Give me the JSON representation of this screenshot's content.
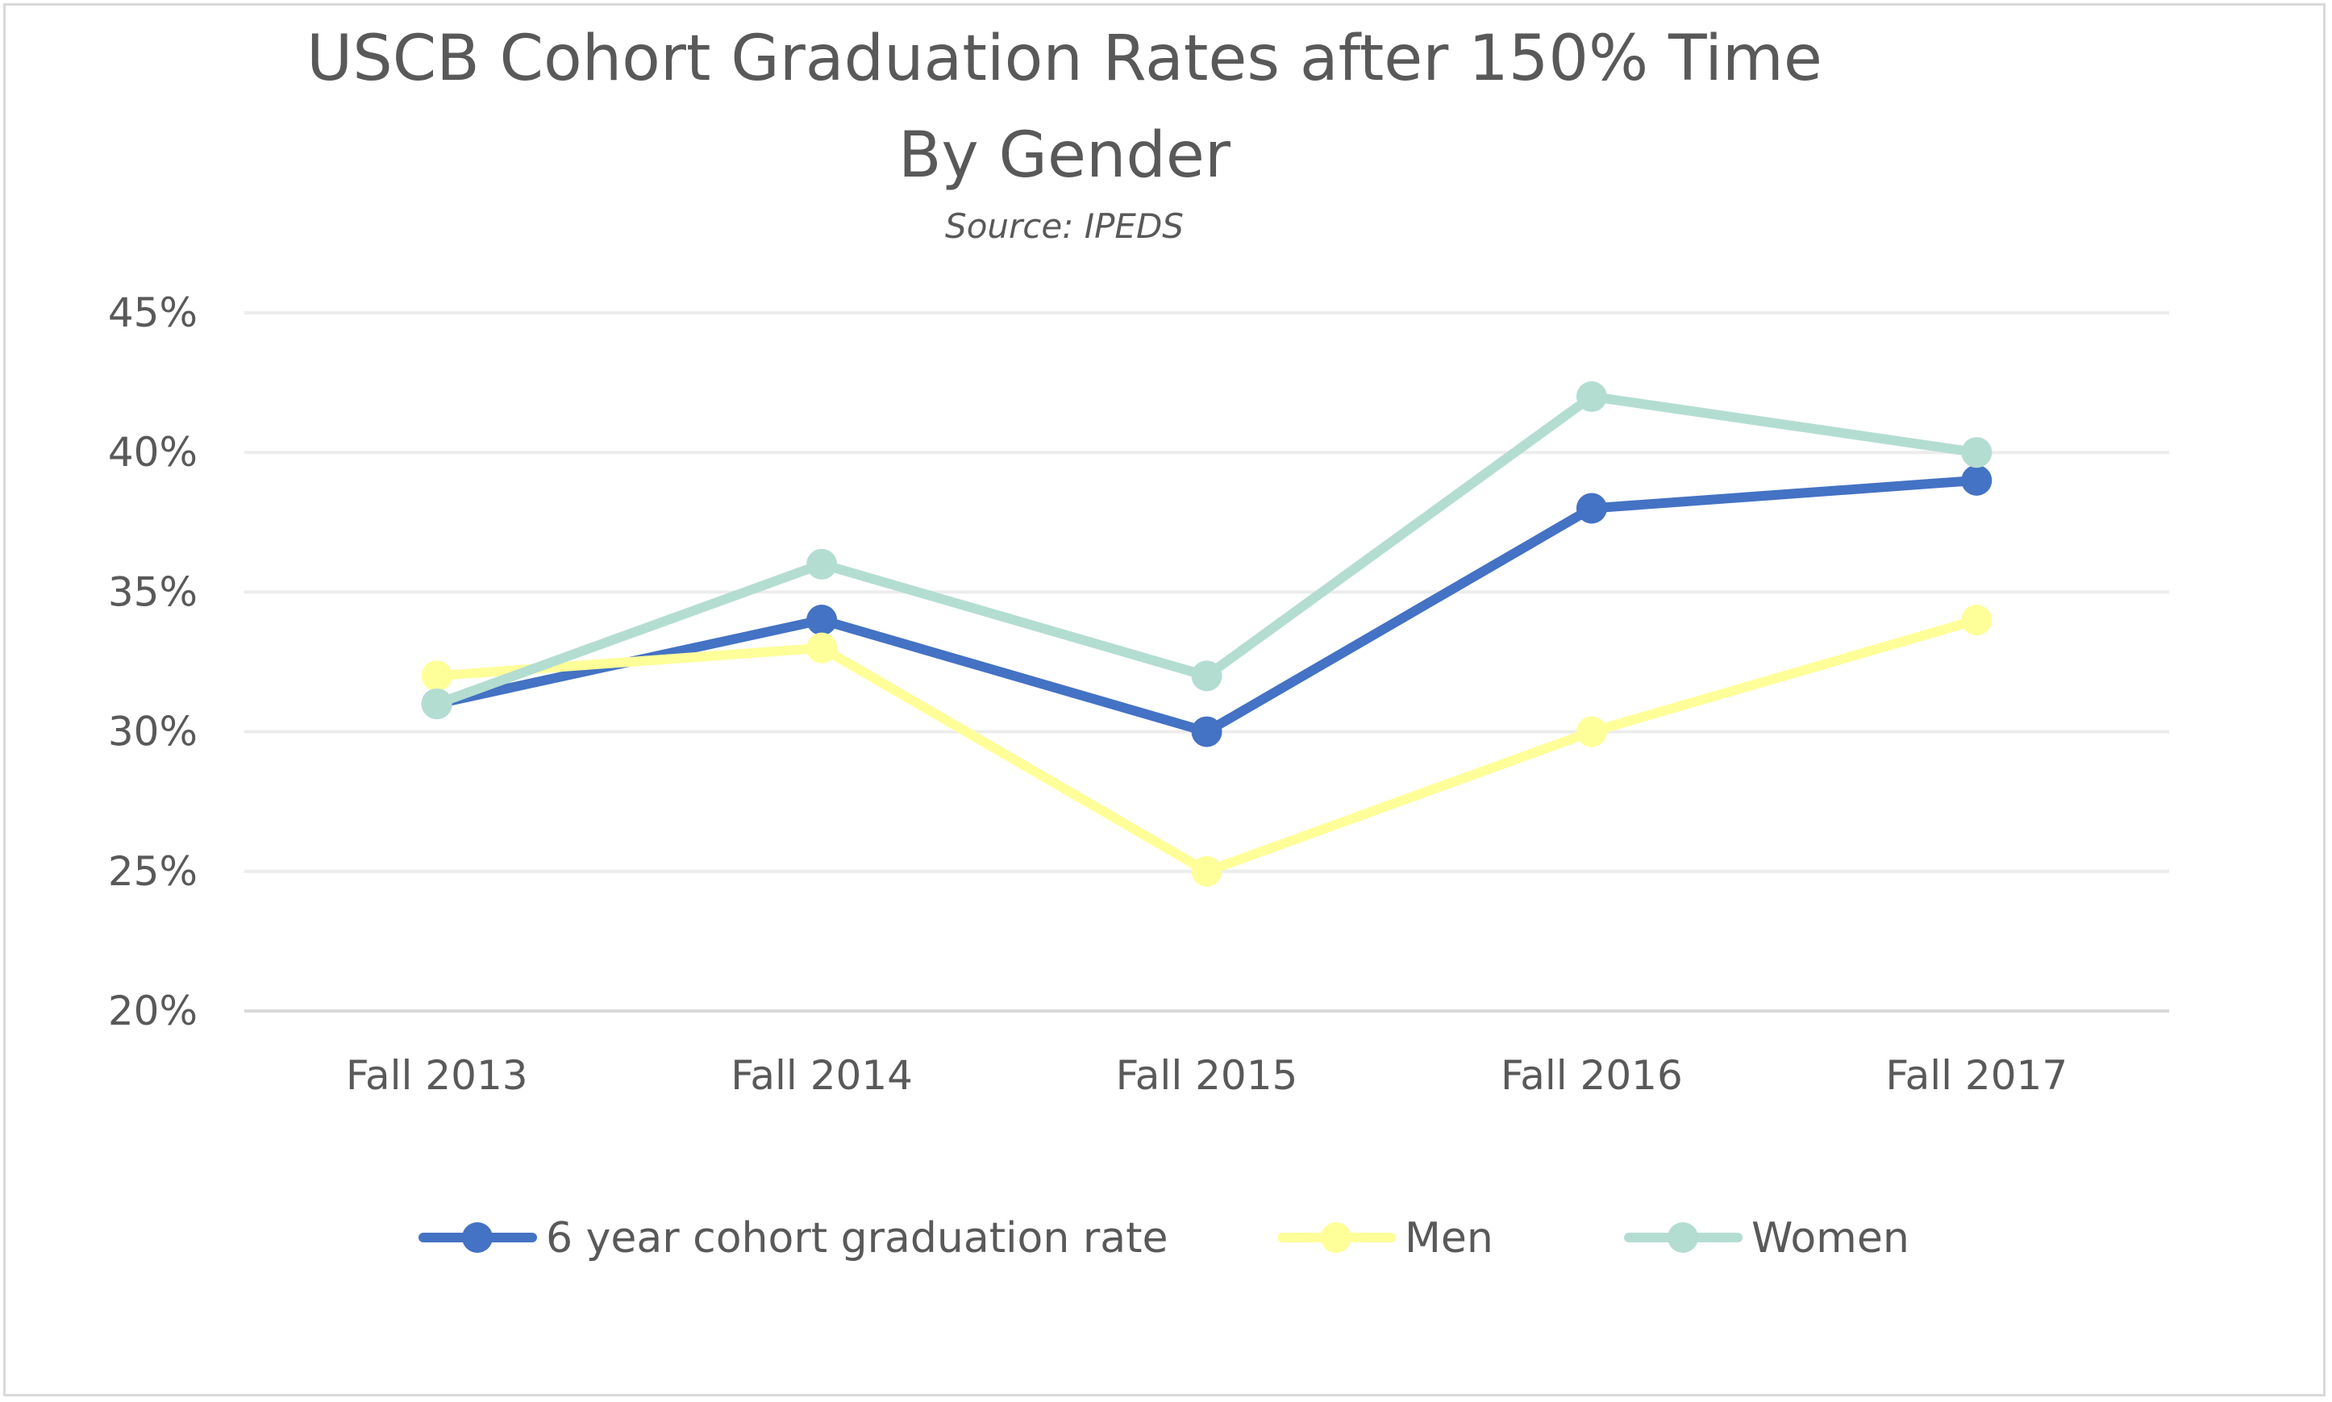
{
  "chart_data": {
    "type": "line",
    "title": "USCB Cohort Graduation Rates after 150% Time",
    "title_line2": "By Gender",
    "subtitle": "Source: IPEDS",
    "xlabel": "",
    "ylabel": "",
    "categories": [
      "Fall 2013",
      "Fall 2014",
      "Fall 2015",
      "Fall 2016",
      "Fall 2017"
    ],
    "ylim": [
      0.2,
      0.45
    ],
    "yticks": [
      {
        "value": 0.2,
        "label": "20%"
      },
      {
        "value": 0.25,
        "label": "25%"
      },
      {
        "value": 0.3,
        "label": "30%"
      },
      {
        "value": 0.35,
        "label": "35%"
      },
      {
        "value": 0.4,
        "label": "40%"
      },
      {
        "value": 0.45,
        "label": "45%"
      }
    ],
    "grid": true,
    "legend_position": "bottom",
    "series": [
      {
        "name": "6  year cohort graduation rate",
        "color": "#4472c4",
        "values": [
          0.31,
          0.34,
          0.3,
          0.38,
          0.39
        ]
      },
      {
        "name": "Men",
        "color": "#ffff99",
        "values": [
          0.32,
          0.33,
          0.25,
          0.3,
          0.34
        ]
      },
      {
        "name": "Women",
        "color": "#b4ddd2",
        "values": [
          0.31,
          0.36,
          0.32,
          0.42,
          0.4
        ]
      }
    ]
  }
}
